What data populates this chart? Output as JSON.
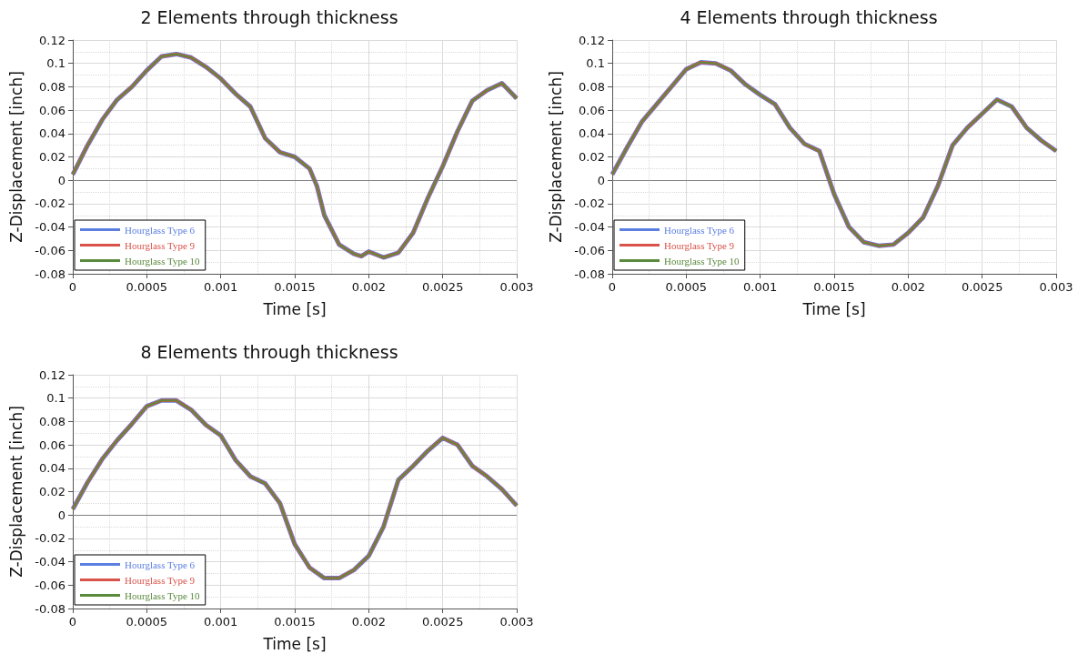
{
  "chart_data": [
    {
      "type": "line",
      "title": "2 Elements through thickness",
      "xlabel": "Time [s]",
      "ylabel": "Z-Displacement [inch]",
      "xlim": [
        0,
        0.003
      ],
      "xticks": [
        0,
        0.0005,
        0.001,
        0.0015,
        0.002,
        0.0025,
        0.003
      ],
      "ylim": [
        -0.08,
        0.12
      ],
      "yticks": [
        -0.08,
        -0.06,
        -0.04,
        -0.02,
        0,
        0.02,
        0.04,
        0.06,
        0.08,
        0.1,
        0.12
      ],
      "grid": true,
      "legend": "bottom left",
      "ref_lines": [
        {
          "axis": "y",
          "value": 0,
          "color": "#808080"
        }
      ],
      "x": [
        0,
        0.0001,
        0.0002,
        0.0003,
        0.0004,
        0.0005,
        0.0006,
        0.0007,
        0.0008,
        0.0009,
        0.001,
        0.0011,
        0.0012,
        0.0013,
        0.0014,
        0.0015,
        0.0016,
        0.00165,
        0.0017,
        0.0018,
        0.0019,
        0.00195,
        0.002,
        0.0021,
        0.0022,
        0.0023,
        0.0024,
        0.0025,
        0.0026,
        0.0027,
        0.0028,
        0.0029,
        0.003
      ],
      "series": [
        {
          "name": "Hourglass Type 6",
          "color": "#5b7fe0",
          "values": [
            0.005,
            0.03,
            0.052,
            0.069,
            0.08,
            0.094,
            0.106,
            0.108,
            0.105,
            0.097,
            0.087,
            0.074,
            0.063,
            0.036,
            0.024,
            0.02,
            0.01,
            -0.005,
            -0.03,
            -0.055,
            -0.063,
            -0.065,
            -0.061,
            -0.066,
            -0.062,
            -0.045,
            -0.015,
            0.012,
            0.042,
            0.068,
            0.077,
            0.083,
            0.07
          ]
        },
        {
          "name": "Hourglass Type 9",
          "color": "#d9534a",
          "values": [
            0.005,
            0.03,
            0.052,
            0.069,
            0.08,
            0.094,
            0.106,
            0.108,
            0.105,
            0.097,
            0.087,
            0.074,
            0.063,
            0.036,
            0.024,
            0.02,
            0.01,
            -0.005,
            -0.03,
            -0.055,
            -0.063,
            -0.065,
            -0.061,
            -0.066,
            -0.062,
            -0.045,
            -0.015,
            0.012,
            0.042,
            0.068,
            0.077,
            0.083,
            0.07
          ]
        },
        {
          "name": "Hourglass Type 10",
          "color": "#5a8a3c",
          "values": [
            0.005,
            0.03,
            0.052,
            0.069,
            0.08,
            0.094,
            0.106,
            0.108,
            0.105,
            0.097,
            0.087,
            0.074,
            0.063,
            0.036,
            0.024,
            0.02,
            0.01,
            -0.005,
            -0.03,
            -0.055,
            -0.063,
            -0.065,
            -0.061,
            -0.066,
            -0.062,
            -0.045,
            -0.015,
            0.012,
            0.042,
            0.068,
            0.077,
            0.083,
            0.07
          ]
        }
      ]
    },
    {
      "type": "line",
      "title": "4 Elements through thickness",
      "xlabel": "Time [s]",
      "ylabel": "Z-Displacement [inch]",
      "xlim": [
        0,
        0.003
      ],
      "xticks": [
        0,
        0.0005,
        0.001,
        0.0015,
        0.002,
        0.0025,
        0.003
      ],
      "ylim": [
        -0.08,
        0.12
      ],
      "yticks": [
        -0.08,
        -0.06,
        -0.04,
        -0.02,
        0,
        0.02,
        0.04,
        0.06,
        0.08,
        0.1,
        0.12
      ],
      "grid": true,
      "legend": "bottom left",
      "ref_lines": [
        {
          "axis": "y",
          "value": 0,
          "color": "#808080"
        }
      ],
      "x": [
        0,
        0.0001,
        0.0002,
        0.0003,
        0.0004,
        0.0005,
        0.0006,
        0.0007,
        0.0008,
        0.0009,
        0.001,
        0.0011,
        0.0012,
        0.0013,
        0.0014,
        0.0015,
        0.0016,
        0.0017,
        0.0018,
        0.0019,
        0.002,
        0.0021,
        0.0022,
        0.0023,
        0.0024,
        0.0025,
        0.0026,
        0.0027,
        0.0028,
        0.0029,
        0.003
      ],
      "series": [
        {
          "name": "Hourglass Type 6",
          "color": "#5b7fe0",
          "values": [
            0.005,
            0.028,
            0.05,
            0.065,
            0.08,
            0.095,
            0.101,
            0.1,
            0.094,
            0.082,
            0.073,
            0.065,
            0.045,
            0.031,
            0.025,
            -0.012,
            -0.04,
            -0.053,
            -0.056,
            -0.055,
            -0.045,
            -0.032,
            -0.005,
            0.03,
            0.045,
            0.057,
            0.069,
            0.063,
            0.045,
            0.034,
            0.025
          ]
        },
        {
          "name": "Hourglass Type 9",
          "color": "#d9534a",
          "values": [
            0.005,
            0.028,
            0.05,
            0.065,
            0.08,
            0.095,
            0.101,
            0.1,
            0.094,
            0.082,
            0.073,
            0.065,
            0.045,
            0.031,
            0.025,
            -0.012,
            -0.04,
            -0.053,
            -0.056,
            -0.055,
            -0.045,
            -0.032,
            -0.005,
            0.03,
            0.045,
            0.057,
            0.069,
            0.063,
            0.045,
            0.034,
            0.025
          ]
        },
        {
          "name": "Hourglass Type 10",
          "color": "#5a8a3c",
          "values": [
            0.005,
            0.028,
            0.05,
            0.065,
            0.08,
            0.095,
            0.101,
            0.1,
            0.094,
            0.082,
            0.073,
            0.065,
            0.045,
            0.031,
            0.025,
            -0.012,
            -0.04,
            -0.053,
            -0.056,
            -0.055,
            -0.045,
            -0.032,
            -0.005,
            0.03,
            0.045,
            0.057,
            0.069,
            0.063,
            0.045,
            0.034,
            0.025
          ]
        }
      ]
    },
    {
      "type": "line",
      "title": "8 Elements through thickness",
      "xlabel": "Time [s]",
      "ylabel": "Z-Displacement [inch]",
      "xlim": [
        0,
        0.003
      ],
      "xticks": [
        0,
        0.0005,
        0.001,
        0.0015,
        0.002,
        0.0025,
        0.003
      ],
      "ylim": [
        -0.08,
        0.12
      ],
      "yticks": [
        -0.08,
        -0.06,
        -0.04,
        -0.02,
        0,
        0.02,
        0.04,
        0.06,
        0.08,
        0.1,
        0.12
      ],
      "grid": true,
      "legend": "bottom left",
      "ref_lines": [
        {
          "axis": "y",
          "value": 0,
          "color": "#808080"
        }
      ],
      "x": [
        0,
        0.0001,
        0.0002,
        0.0003,
        0.0004,
        0.0005,
        0.0006,
        0.0007,
        0.0008,
        0.0009,
        0.001,
        0.0011,
        0.0012,
        0.0013,
        0.0014,
        0.0015,
        0.0016,
        0.0017,
        0.0018,
        0.0019,
        0.002,
        0.0021,
        0.0022,
        0.0023,
        0.0024,
        0.0025,
        0.0026,
        0.0027,
        0.0028,
        0.0029,
        0.003
      ],
      "series": [
        {
          "name": "Hourglass Type 6",
          "color": "#5b7fe0",
          "values": [
            0.005,
            0.028,
            0.048,
            0.064,
            0.078,
            0.093,
            0.098,
            0.098,
            0.09,
            0.077,
            0.068,
            0.047,
            0.033,
            0.027,
            0.01,
            -0.025,
            -0.045,
            -0.054,
            -0.054,
            -0.047,
            -0.035,
            -0.01,
            0.03,
            0.042,
            0.055,
            0.066,
            0.06,
            0.042,
            0.033,
            0.022,
            0.008
          ]
        },
        {
          "name": "Hourglass Type 9",
          "color": "#d9534a",
          "values": [
            0.005,
            0.028,
            0.048,
            0.064,
            0.078,
            0.093,
            0.098,
            0.098,
            0.09,
            0.077,
            0.068,
            0.047,
            0.033,
            0.027,
            0.01,
            -0.025,
            -0.045,
            -0.054,
            -0.054,
            -0.047,
            -0.035,
            -0.01,
            0.03,
            0.042,
            0.055,
            0.066,
            0.06,
            0.042,
            0.033,
            0.022,
            0.008
          ]
        },
        {
          "name": "Hourglass Type 10",
          "color": "#5a8a3c",
          "values": [
            0.005,
            0.028,
            0.048,
            0.064,
            0.078,
            0.093,
            0.098,
            0.098,
            0.09,
            0.077,
            0.068,
            0.047,
            0.033,
            0.027,
            0.01,
            -0.025,
            -0.045,
            -0.054,
            -0.054,
            -0.047,
            -0.035,
            -0.01,
            0.03,
            0.042,
            0.055,
            0.066,
            0.06,
            0.042,
            0.033,
            0.022,
            0.008
          ]
        }
      ]
    }
  ]
}
